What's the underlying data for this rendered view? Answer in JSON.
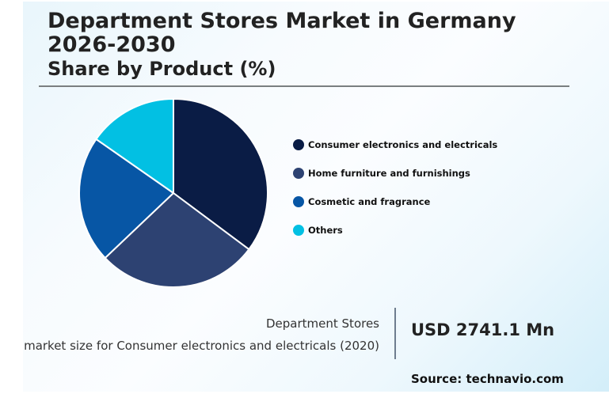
{
  "header": {
    "title": "Department Stores Market in Germany 2026-2030",
    "subtitle": "Share by Product (%)"
  },
  "legend": {
    "items": [
      {
        "label": "Consumer electronics and electricals",
        "color": "#0a1c45"
      },
      {
        "label": "Home furniture and furnishings",
        "color": "#2d4272"
      },
      {
        "label": "Cosmetic and fragrance",
        "color": "#0756a5"
      },
      {
        "label": "Others",
        "color": "#02c0e3"
      }
    ]
  },
  "stat": {
    "label_line1": "Department Stores",
    "label_line2": "market size for Consumer electronics and electricals (2020)",
    "value": "USD 2741.1 Mn"
  },
  "footer": {
    "source": "Source: technavio.com"
  },
  "chart_data": {
    "type": "pie",
    "title": "Department Stores Market in Germany 2026-2030",
    "subtitle": "Share by Product (%)",
    "categories": [
      "Consumer electronics and electricals",
      "Home furniture and furnishings",
      "Cosmetic and fragrance",
      "Others"
    ],
    "values": [
      35.2,
      27.7,
      21.8,
      15.3
    ],
    "colors": [
      "#0a1c45",
      "#2d4272",
      "#0756a5",
      "#02c0e3"
    ],
    "start_angle": "12 o'clock, clockwise",
    "legend_position": "right",
    "data_labels": false
  }
}
